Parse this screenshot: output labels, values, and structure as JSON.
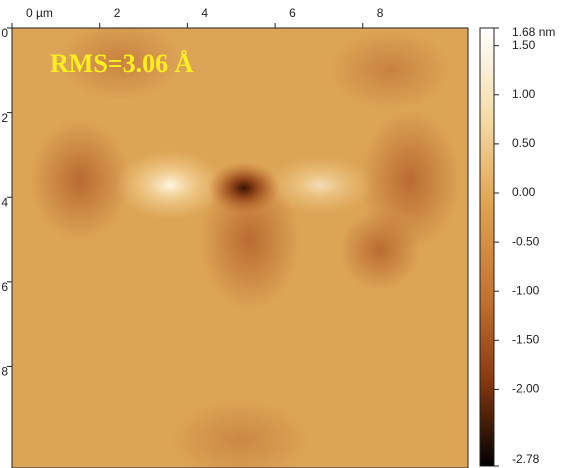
{
  "chart_data": {
    "type": "heatmap",
    "annotation": "RMS=3.06 Å",
    "xlim": [
      0,
      10.4
    ],
    "xticks": [
      {
        "value": 0,
        "label": "0 µm"
      },
      2,
      4,
      6,
      8
    ],
    "ylim": [
      0,
      10.4
    ],
    "yticks": [
      0,
      2,
      4,
      6,
      8
    ],
    "clim": [
      -2.78,
      1.68
    ],
    "clim_labels": [
      "-2.78",
      "1.68 nm"
    ],
    "cticks": [
      {
        "value": 1.5,
        "label": "1.50"
      },
      {
        "value": 1,
        "label": "1.00"
      },
      {
        "value": 0.5,
        "label": "0.50"
      },
      {
        "value": 0,
        "label": "0.00"
      },
      {
        "value": -0.5,
        "label": "-0.50"
      },
      {
        "value": -1,
        "label": "-1.00"
      },
      {
        "value": -1.5,
        "label": "-1.50"
      },
      {
        "value": -2,
        "label": "-2.00"
      }
    ]
  }
}
